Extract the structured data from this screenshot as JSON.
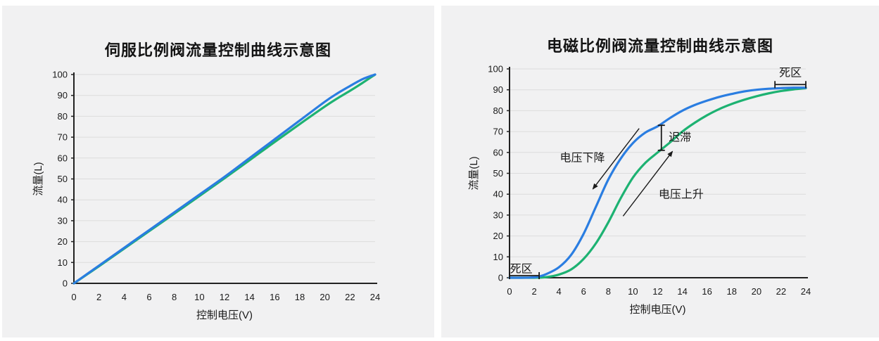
{
  "page": {
    "background": "#ffffff",
    "panel_background": "#f1f1f2"
  },
  "colors": {
    "blue": "#2a7de1",
    "green": "#1db272",
    "axis": "#222222",
    "grid": "#dcdcdc",
    "text": "#1a1a1a",
    "annotation": "#1a1a1a"
  },
  "chart_data": [
    {
      "type": "line",
      "title": "伺服比例阀流量控制曲线示意图",
      "xlabel": "控制电压(V)",
      "ylabel": "流量(L)",
      "xlim": [
        0,
        24
      ],
      "ylim": [
        0,
        100
      ],
      "xtick_step": 2,
      "ytick_step": 10,
      "grid": "horizontal",
      "legend": "none",
      "series": [
        {
          "id": "voltage-up",
          "color_key": "green",
          "points": [
            [
              0,
              0
            ],
            [
              2,
              8.2
            ],
            [
              4,
              16.6
            ],
            [
              6,
              25
            ],
            [
              8,
              33.4
            ],
            [
              10,
              41.8
            ],
            [
              12,
              50.3
            ],
            [
              14,
              59
            ],
            [
              16,
              67.7
            ],
            [
              18,
              76.3
            ],
            [
              20,
              84.7
            ],
            [
              21,
              88.6
            ],
            [
              22,
              92.2
            ],
            [
              23,
              96
            ],
            [
              24,
              100
            ]
          ]
        },
        {
          "id": "voltage-down",
          "color_key": "blue",
          "points": [
            [
              0,
              0
            ],
            [
              2,
              8.5
            ],
            [
              4,
              17
            ],
            [
              6,
              25.5
            ],
            [
              8,
              34
            ],
            [
              10,
              42.5
            ],
            [
              12,
              51
            ],
            [
              14,
              60
            ],
            [
              16,
              69
            ],
            [
              18,
              78
            ],
            [
              20,
              87
            ],
            [
              21,
              91
            ],
            [
              22,
              94.5
            ],
            [
              23,
              97.8
            ],
            [
              24,
              100
            ]
          ]
        }
      ],
      "annotations": []
    },
    {
      "type": "line",
      "title": "电磁比例阀流量控制曲线示意图",
      "xlabel": "控制电压(V)",
      "ylabel": "流量(L)",
      "xlim": [
        0,
        24
      ],
      "ylim": [
        0,
        100
      ],
      "xtick_step": 2,
      "ytick_step": 10,
      "grid": "horizontal",
      "legend": "none",
      "series": [
        {
          "id": "voltage-up",
          "color_key": "green",
          "points": [
            [
              0,
              0
            ],
            [
              1,
              0
            ],
            [
              2,
              0
            ],
            [
              3,
              0.3
            ],
            [
              4,
              1.5
            ],
            [
              5,
              4
            ],
            [
              6,
              9
            ],
            [
              7,
              16.5
            ],
            [
              8,
              26.5
            ],
            [
              9,
              38
            ],
            [
              10,
              48
            ],
            [
              11,
              55
            ],
            [
              12,
              60
            ],
            [
              13,
              64.8
            ],
            [
              14,
              70
            ],
            [
              15,
              74.2
            ],
            [
              16,
              77.8
            ],
            [
              17,
              80.8
            ],
            [
              18,
              83.2
            ],
            [
              19,
              85.2
            ],
            [
              20,
              86.9
            ],
            [
              21,
              88.3
            ],
            [
              22,
              89.4
            ],
            [
              23,
              90.2
            ],
            [
              24,
              90.8
            ]
          ]
        },
        {
          "id": "voltage-down",
          "color_key": "blue",
          "points": [
            [
              0,
              0
            ],
            [
              1,
              0
            ],
            [
              2,
              0.2
            ],
            [
              2.4,
              0.6
            ],
            [
              3,
              1.8
            ],
            [
              4,
              5
            ],
            [
              5,
              11
            ],
            [
              6,
              21
            ],
            [
              7,
              34
            ],
            [
              8,
              47
            ],
            [
              9,
              57
            ],
            [
              10,
              64.5
            ],
            [
              11,
              69.5
            ],
            [
              12,
              72.5
            ],
            [
              13,
              76.5
            ],
            [
              14,
              80
            ],
            [
              15,
              82.7
            ],
            [
              16,
              84.8
            ],
            [
              17,
              86.6
            ],
            [
              18,
              88
            ],
            [
              19,
              89.2
            ],
            [
              20,
              90
            ],
            [
              21,
              90.5
            ],
            [
              22,
              90.8
            ],
            [
              23,
              91
            ],
            [
              24,
              91
            ]
          ]
        }
      ],
      "annotations": [
        {
          "type": "hbracket",
          "name": "dead-zone-low",
          "x1": 0,
          "x2": 2.4,
          "y": 1,
          "label": "死区",
          "lx": 0.95,
          "ly": 4.4
        },
        {
          "type": "hbracket",
          "name": "dead-zone-high",
          "x1": 21.5,
          "x2": 24,
          "y": 92.5,
          "label": "死区",
          "lx": 22.75,
          "ly": 98.4
        },
        {
          "type": "vbracket",
          "name": "hysteresis",
          "x": 12.3,
          "y1": 61,
          "y2": 73,
          "label": "迟滞",
          "lx": 13.8,
          "ly": 67.3
        },
        {
          "type": "arrow",
          "name": "voltage-falling-arrow",
          "x1": 10.5,
          "y1": 71.5,
          "x2": 6.75,
          "y2": 42.5,
          "label": "电压下降",
          "lx": 5.9,
          "ly": 57.5
        },
        {
          "type": "arrow",
          "name": "voltage-rising-arrow",
          "x1": 9.2,
          "y1": 29.5,
          "x2": 13.2,
          "y2": 60.5,
          "label": "电压上升",
          "lx": 13.9,
          "ly": 40
        }
      ]
    }
  ]
}
